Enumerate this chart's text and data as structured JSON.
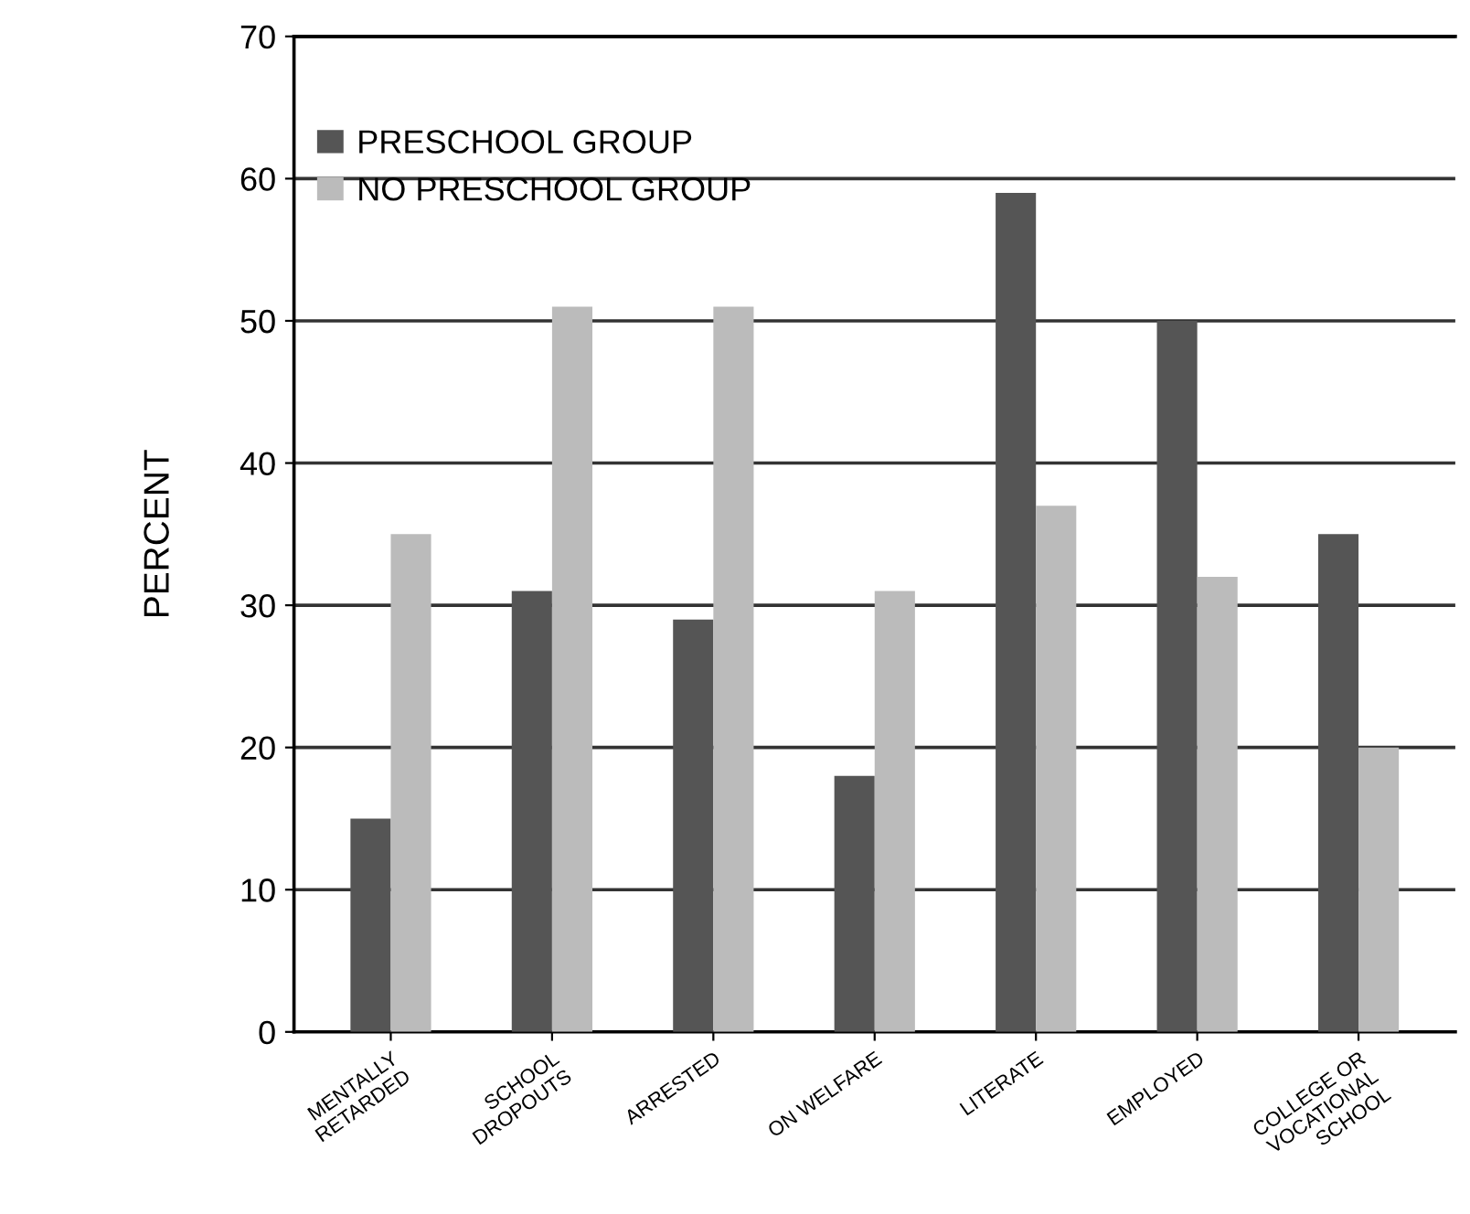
{
  "chart_data": {
    "type": "bar",
    "ylabel": "PERCENT",
    "categories": [
      "MENTALLY\nRETARDED",
      "SCHOOL\nDROPOUTS",
      "ARRESTED",
      "ON WELFARE",
      "LITERATE",
      "EMPLOYED",
      "COLLEGE OR\nVOCATIONAL\nSCHOOL"
    ],
    "series": [
      {
        "name": "PRESCHOOL GROUP",
        "color": "#555555",
        "values": [
          15,
          31,
          29,
          18,
          59,
          50,
          35
        ]
      },
      {
        "name": "NO PRESCHOOL GROUP",
        "color": "#bbbbbb",
        "values": [
          35,
          51,
          51,
          31,
          37,
          32,
          20
        ]
      }
    ],
    "ylim": [
      0,
      70
    ],
    "yticks": [
      0,
      10,
      20,
      30,
      40,
      50,
      60,
      70
    ],
    "grid": "y",
    "legend": "top left"
  }
}
